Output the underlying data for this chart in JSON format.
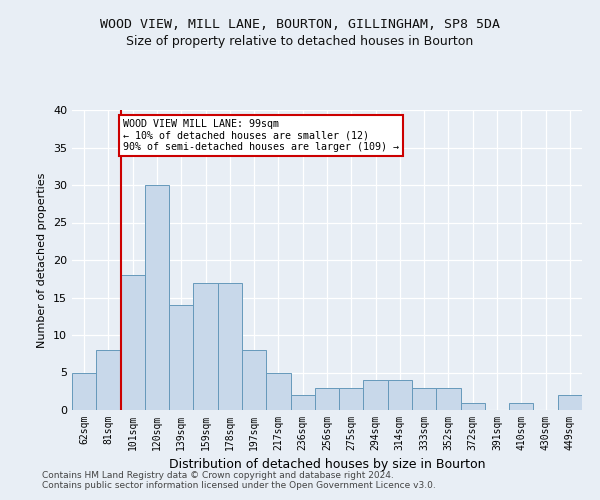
{
  "title1": "WOOD VIEW, MILL LANE, BOURTON, GILLINGHAM, SP8 5DA",
  "title2": "Size of property relative to detached houses in Bourton",
  "xlabel": "Distribution of detached houses by size in Bourton",
  "ylabel": "Number of detached properties",
  "footnote1": "Contains HM Land Registry data © Crown copyright and database right 2024.",
  "footnote2": "Contains public sector information licensed under the Open Government Licence v3.0.",
  "categories": [
    "62sqm",
    "81sqm",
    "101sqm",
    "120sqm",
    "139sqm",
    "159sqm",
    "178sqm",
    "197sqm",
    "217sqm",
    "236sqm",
    "256sqm",
    "275sqm",
    "294sqm",
    "314sqm",
    "333sqm",
    "352sqm",
    "372sqm",
    "391sqm",
    "410sqm",
    "430sqm",
    "449sqm"
  ],
  "values": [
    5,
    8,
    18,
    30,
    14,
    17,
    17,
    8,
    5,
    2,
    3,
    3,
    4,
    4,
    3,
    3,
    1,
    0,
    1,
    0,
    2
  ],
  "bar_color": "#c8d8ea",
  "bar_edge_color": "#6699bb",
  "red_line_index": 2,
  "annotation_line1": "WOOD VIEW MILL LANE: 99sqm",
  "annotation_line2": "← 10% of detached houses are smaller (12)",
  "annotation_line3": "90% of semi-detached houses are larger (109) →",
  "annotation_box_facecolor": "#ffffff",
  "annotation_box_edgecolor": "#cc0000",
  "red_line_color": "#cc0000",
  "background_color": "#e8eef5",
  "grid_color": "#ffffff",
  "ylim": [
    0,
    40
  ],
  "yticks": [
    0,
    5,
    10,
    15,
    20,
    25,
    30,
    35,
    40
  ]
}
